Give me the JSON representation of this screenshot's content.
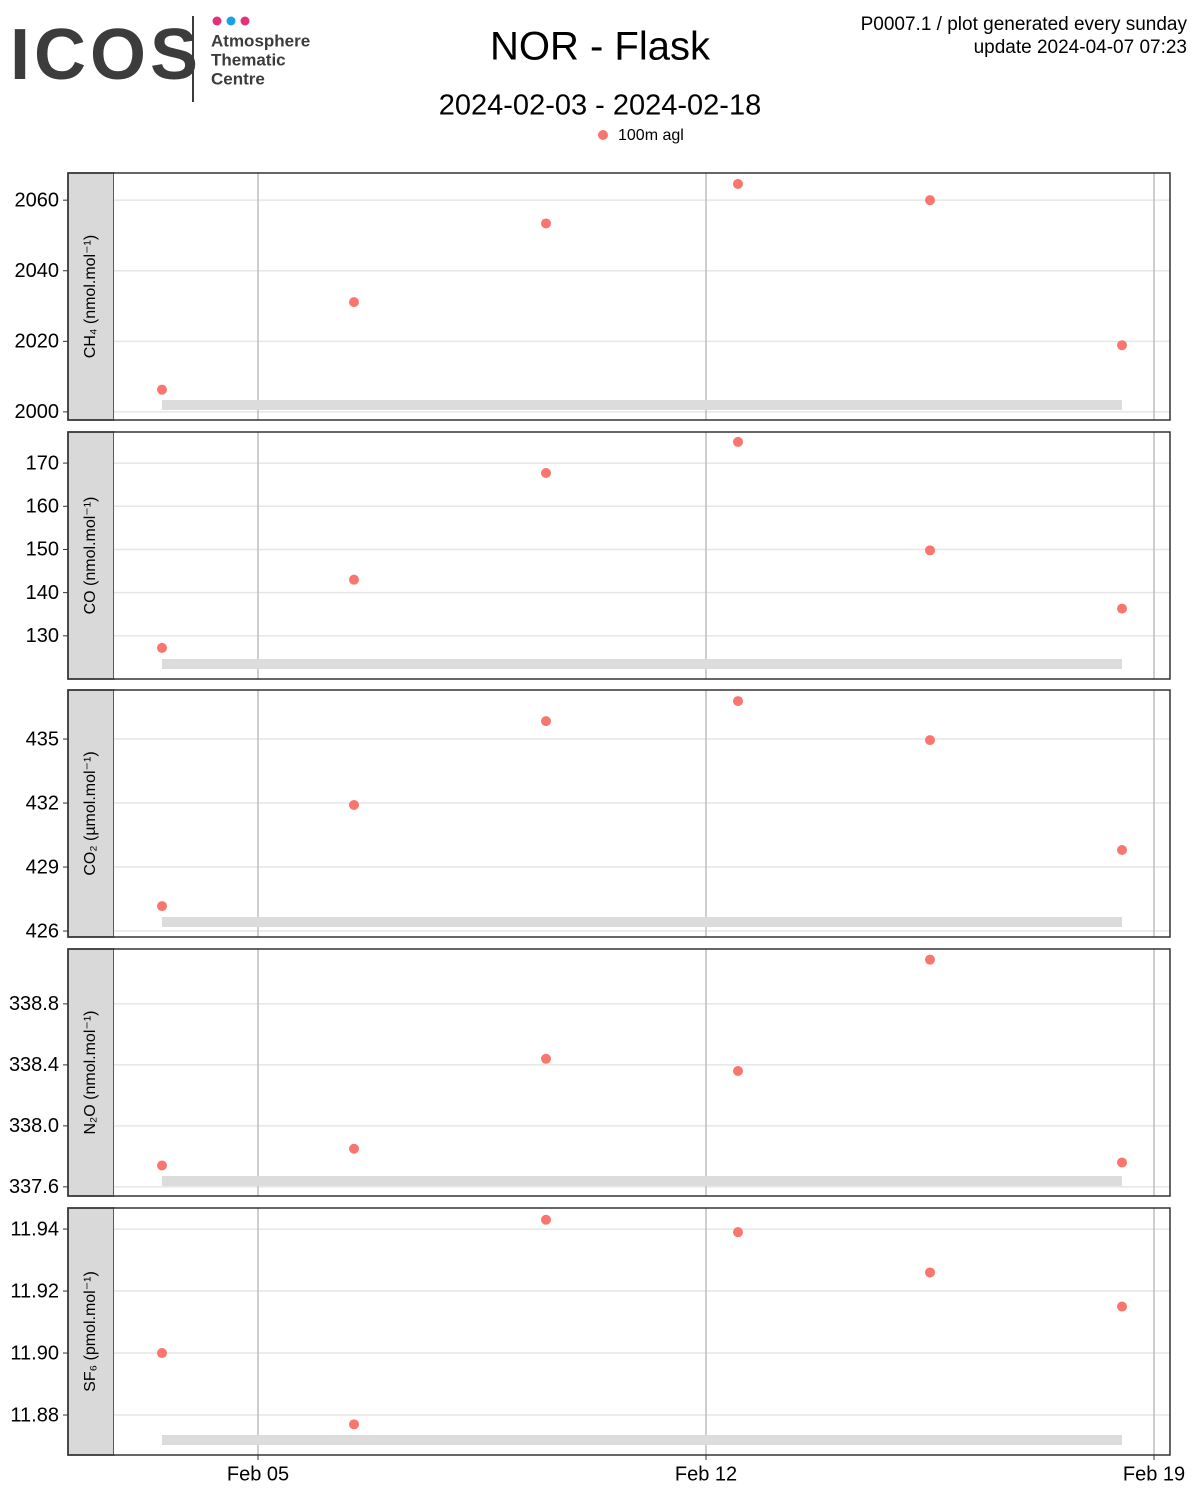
{
  "header": {
    "logo": "ICOS",
    "logo_sub": [
      "Atmosphere",
      "Thematic",
      "Centre"
    ],
    "title": "NOR - Flask",
    "subtitle": "2024-02-03 - 2024-02-18",
    "info": [
      "P0007.1 / plot generated every sunday",
      "update  2024-04-07 07:23"
    ]
  },
  "legend": {
    "label": "100m agl",
    "color": "#f8766d"
  },
  "chart_data": [
    {
      "type": "scatter",
      "ylabel": "CH₄ (nmol.mol⁻¹)",
      "color": "#f8766d",
      "x": [
        3.5,
        6.5,
        9.5,
        12.5,
        15.5,
        18.5
      ],
      "values": [
        2006.3,
        2031.1,
        2053.4,
        2064.6,
        2060,
        2018.9
      ],
      "xlim": [
        2.75,
        19.25
      ],
      "xticks": [
        {
          "value": 5,
          "label": "Feb 05"
        },
        {
          "value": 12,
          "label": "Feb 12"
        },
        {
          "value": 19,
          "label": "Feb 19"
        }
      ],
      "ylim": [
        1997.7,
        2067.7
      ],
      "yticks": [
        2000,
        2020,
        2040,
        2060
      ],
      "grid": true
    },
    {
      "type": "scatter",
      "ylabel": "CO (nmol.mol⁻¹)",
      "color": "#f8766d",
      "x": [
        3.5,
        6.5,
        9.5,
        12.5,
        15.5,
        18.5
      ],
      "values": [
        127.2,
        143.0,
        167.7,
        174.9,
        149.8,
        136.3
      ],
      "xlim": [
        2.75,
        19.25
      ],
      "xticks": [
        {
          "value": 5,
          "label": "Feb 05"
        },
        {
          "value": 12,
          "label": "Feb 12"
        },
        {
          "value": 19,
          "label": "Feb 19"
        }
      ],
      "ylim": [
        120,
        177.2
      ],
      "yticks": [
        130,
        140,
        150,
        160,
        170
      ],
      "grid": true
    },
    {
      "type": "scatter",
      "ylabel": "CO₂ (µmol.mol⁻¹)",
      "color": "#f8766d",
      "x": [
        3.5,
        6.5,
        9.5,
        12.5,
        15.5,
        18.5
      ],
      "values": [
        427.17,
        431.91,
        435.84,
        436.78,
        434.95,
        429.8
      ],
      "xlim": [
        2.75,
        19.25
      ],
      "xticks": [
        {
          "value": 5,
          "label": "Feb 05"
        },
        {
          "value": 12,
          "label": "Feb 12"
        },
        {
          "value": 19,
          "label": "Feb 19"
        }
      ],
      "ylim": [
        425.72,
        437.3
      ],
      "yticks": [
        426,
        429,
        432,
        435
      ],
      "grid": true
    },
    {
      "type": "scatter",
      "ylabel": "N₂O (nmol.mol⁻¹)",
      "color": "#f8766d",
      "x": [
        3.5,
        6.5,
        9.5,
        12.5,
        15.5,
        18.5
      ],
      "values": [
        337.74,
        337.85,
        338.44,
        338.36,
        339.09,
        337.76
      ],
      "xlim": [
        2.75,
        19.25
      ],
      "xticks": [
        {
          "value": 5,
          "label": "Feb 05"
        },
        {
          "value": 12,
          "label": "Feb 12"
        },
        {
          "value": 19,
          "label": "Feb 19"
        }
      ],
      "ylim": [
        337.54,
        339.16
      ],
      "yticks": [
        337.6,
        {
          "value": 338,
          "label": "338.0"
        },
        338.4,
        338.8
      ],
      "grid": true
    },
    {
      "type": "scatter",
      "ylabel": "SF₆ (pmol.mol⁻¹)",
      "color": "#f8766d",
      "x": [
        3.5,
        6.5,
        9.5,
        12.5,
        15.5,
        18.5
      ],
      "values": [
        11.9,
        11.877,
        11.943,
        11.939,
        11.926,
        11.915
      ],
      "xlim": [
        2.75,
        19.25
      ],
      "xticks": [
        {
          "value": 5,
          "label": "Feb 05"
        },
        {
          "value": 12,
          "label": "Feb 12"
        },
        {
          "value": 19,
          "label": "Feb 19"
        }
      ],
      "ylim": [
        11.8671,
        11.9468
      ],
      "yticks": [
        11.88,
        {
          "value": 11.9,
          "label": "11.90"
        },
        11.92,
        11.94
      ],
      "grid": true
    }
  ]
}
